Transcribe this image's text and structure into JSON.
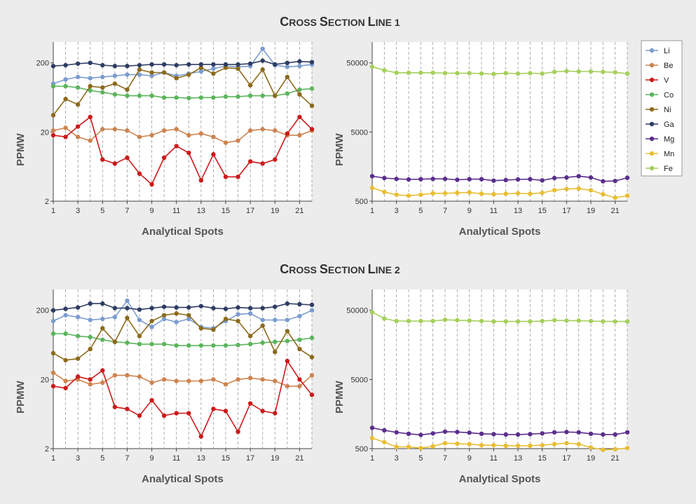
{
  "sections": [
    {
      "title_main": "C",
      "title_small": "ROSS ",
      "title_main2": "S",
      "title_small2": "ECTION ",
      "title_main3": "L",
      "title_small3": "INE 1"
    },
    {
      "title_main": "C",
      "title_small": "ROSS ",
      "title_main2": "S",
      "title_small2": "ECTION ",
      "title_main3": "L",
      "title_small3": "INE 2"
    }
  ],
  "legend": [
    {
      "name": "Li",
      "color": "#7b9ccf"
    },
    {
      "name": "Be",
      "color": "#cc8450"
    },
    {
      "name": "V",
      "color": "#cc1a1a"
    },
    {
      "name": "Co",
      "color": "#5cb55c"
    },
    {
      "name": "Ni",
      "color": "#8c6a1c"
    },
    {
      "name": "Ga",
      "color": "#2e3d63"
    },
    {
      "name": "Mg",
      "color": "#5a2e8c"
    },
    {
      "name": "Mn",
      "color": "#e8be34"
    },
    {
      "name": "Fe",
      "color": "#a6cf5c"
    }
  ],
  "chart_data": [
    {
      "type": "line",
      "section": "Cross Section Line 1",
      "scale": "log",
      "xlabel": "Analytical Spots",
      "ylabel": "PPMW",
      "x": [
        1,
        2,
        3,
        4,
        5,
        6,
        7,
        8,
        9,
        10,
        11,
        12,
        13,
        14,
        15,
        16,
        17,
        18,
        19,
        20,
        21,
        22
      ],
      "xticks": [
        1,
        3,
        5,
        7,
        9,
        11,
        13,
        15,
        17,
        19,
        21
      ],
      "ylim": [
        2,
        400
      ],
      "yticks": [
        2,
        20,
        200
      ],
      "ytick_labels": [
        "2",
        "20",
        "200"
      ],
      "series": [
        {
          "name": "Li",
          "values": [
            100,
            115,
            125,
            120,
            125,
            130,
            135,
            135,
            130,
            145,
            130,
            140,
            150,
            165,
            180,
            175,
            180,
            320,
            185,
            175,
            180,
            190
          ]
        },
        {
          "name": "Be",
          "values": [
            21,
            23,
            17,
            15,
            22,
            22,
            21,
            17,
            18,
            21,
            22,
            18,
            19,
            17,
            14,
            15,
            21,
            22,
            21,
            18,
            18,
            21
          ]
        },
        {
          "name": "V",
          "values": [
            18,
            17,
            24,
            33,
            8,
            7,
            8.5,
            5,
            3.5,
            8.5,
            12.5,
            10,
            4,
            9.5,
            4.5,
            4.5,
            7.5,
            7,
            8,
            19,
            33,
            22
          ]
        },
        {
          "name": "Co",
          "values": [
            92,
            92,
            88,
            80,
            75,
            70,
            67,
            67,
            67,
            63,
            63,
            62,
            63,
            63,
            65,
            65,
            67,
            67,
            67,
            72,
            82,
            85
          ]
        },
        {
          "name": "Ni",
          "values": [
            35,
            60,
            50,
            92,
            88,
            100,
            82,
            160,
            145,
            145,
            120,
            135,
            170,
            140,
            170,
            165,
            95,
            160,
            67,
            125,
            70,
            48
          ]
        },
        {
          "name": "Ga",
          "values": [
            180,
            185,
            195,
            200,
            185,
            180,
            180,
            185,
            190,
            190,
            185,
            190,
            190,
            190,
            190,
            190,
            195,
            215,
            190,
            200,
            210,
            205
          ]
        }
      ]
    },
    {
      "type": "line",
      "section": "Cross Section Line 1",
      "scale": "log",
      "xlabel": "Analytical Spots",
      "ylabel": "PPMW",
      "x": [
        1,
        2,
        3,
        4,
        5,
        6,
        7,
        8,
        9,
        10,
        11,
        12,
        13,
        14,
        15,
        16,
        17,
        18,
        19,
        20,
        21,
        22
      ],
      "xticks": [
        1,
        3,
        5,
        7,
        9,
        11,
        13,
        15,
        17,
        19,
        21
      ],
      "ylim": [
        500,
        100000
      ],
      "yticks": [
        500,
        5000,
        50000
      ],
      "ytick_labels": [
        "500",
        "5000",
        "50000"
      ],
      "series": [
        {
          "name": "Mg",
          "values": [
            1150,
            1080,
            1050,
            1030,
            1040,
            1050,
            1050,
            1020,
            1040,
            1040,
            990,
            1010,
            1030,
            1040,
            1000,
            1080,
            1100,
            1150,
            1100,
            970,
            980,
            1090
          ]
        },
        {
          "name": "Mn",
          "values": [
            780,
            680,
            620,
            600,
            620,
            650,
            650,
            660,
            670,
            640,
            630,
            640,
            650,
            640,
            660,
            720,
            750,
            760,
            720,
            630,
            560,
            600
          ]
        },
        {
          "name": "Fe",
          "values": [
            44000,
            39000,
            36000,
            36000,
            36000,
            36000,
            35500,
            35500,
            35500,
            35000,
            34500,
            35500,
            35000,
            35500,
            35000,
            37000,
            38000,
            37500,
            37500,
            37000,
            36500,
            35000
          ]
        }
      ]
    },
    {
      "type": "line",
      "section": "Cross Section Line 2",
      "scale": "log",
      "xlabel": "Analytical Spots",
      "ylabel": "PPMW",
      "x": [
        1,
        2,
        3,
        4,
        5,
        6,
        7,
        8,
        9,
        10,
        11,
        12,
        13,
        14,
        15,
        16,
        17,
        18,
        19,
        20,
        21,
        22
      ],
      "xticks": [
        1,
        3,
        5,
        7,
        9,
        11,
        13,
        15,
        17,
        19,
        21
      ],
      "ylim": [
        2,
        400
      ],
      "yticks": [
        2,
        20,
        200
      ],
      "ytick_labels": [
        "2",
        "20",
        "200"
      ],
      "series": [
        {
          "name": "Li",
          "values": [
            140,
            170,
            160,
            145,
            150,
            160,
            275,
            145,
            115,
            150,
            135,
            150,
            115,
            110,
            140,
            175,
            180,
            145,
            145,
            145,
            165,
            200
          ]
        },
        {
          "name": "Be",
          "values": [
            25,
            19,
            20,
            17,
            18,
            23,
            23,
            22,
            18,
            20,
            19,
            19,
            19,
            20,
            17,
            20,
            21,
            20,
            19,
            16,
            16,
            23
          ]
        },
        {
          "name": "V",
          "values": [
            16,
            15,
            22,
            20,
            27,
            8,
            7.5,
            6,
            10,
            6,
            6.5,
            6.5,
            3,
            7.5,
            7,
            3.5,
            9,
            7,
            6.5,
            37,
            20,
            12
          ]
        },
        {
          "name": "Co",
          "values": [
            92,
            92,
            85,
            82,
            75,
            70,
            68,
            65,
            65,
            65,
            62,
            62,
            62,
            62,
            62,
            63,
            65,
            68,
            70,
            72,
            75,
            80
          ]
        },
        {
          "name": "Ni",
          "values": [
            48,
            38,
            40,
            55,
            110,
            70,
            155,
            85,
            140,
            170,
            180,
            170,
            110,
            105,
            150,
            140,
            85,
            120,
            50,
            100,
            55,
            42
          ]
        },
        {
          "name": "Ga",
          "values": [
            200,
            210,
            220,
            250,
            250,
            215,
            215,
            205,
            215,
            225,
            220,
            220,
            230,
            215,
            210,
            220,
            215,
            215,
            225,
            250,
            245,
            240
          ]
        }
      ]
    },
    {
      "type": "line",
      "section": "Cross Section Line 2",
      "scale": "log",
      "xlabel": "Analytical Spots",
      "ylabel": "PPMW",
      "x": [
        1,
        2,
        3,
        4,
        5,
        6,
        7,
        8,
        9,
        10,
        11,
        12,
        13,
        14,
        15,
        16,
        17,
        18,
        19,
        20,
        21,
        22
      ],
      "xticks": [
        1,
        3,
        5,
        7,
        9,
        11,
        13,
        15,
        17,
        19,
        21
      ],
      "ylim": [
        500,
        100000
      ],
      "yticks": [
        500,
        5000,
        50000
      ],
      "ytick_labels": [
        "500",
        "5000",
        "50000"
      ],
      "series": [
        {
          "name": "Mg",
          "values": [
            1000,
            920,
            860,
            820,
            790,
            830,
            880,
            870,
            850,
            820,
            810,
            800,
            800,
            810,
            830,
            860,
            870,
            860,
            820,
            800,
            800,
            860
          ]
        },
        {
          "name": "Mn",
          "values": [
            710,
            620,
            530,
            530,
            510,
            540,
            600,
            590,
            580,
            560,
            560,
            550,
            550,
            550,
            560,
            580,
            600,
            580,
            520,
            480,
            490,
            510
          ]
        },
        {
          "name": "Fe",
          "values": [
            47000,
            38000,
            35000,
            35000,
            35000,
            35000,
            36500,
            36000,
            35500,
            35000,
            34500,
            34500,
            34500,
            34500,
            35000,
            36000,
            35500,
            35500,
            35000,
            34500,
            34500,
            34500
          ]
        }
      ]
    }
  ]
}
